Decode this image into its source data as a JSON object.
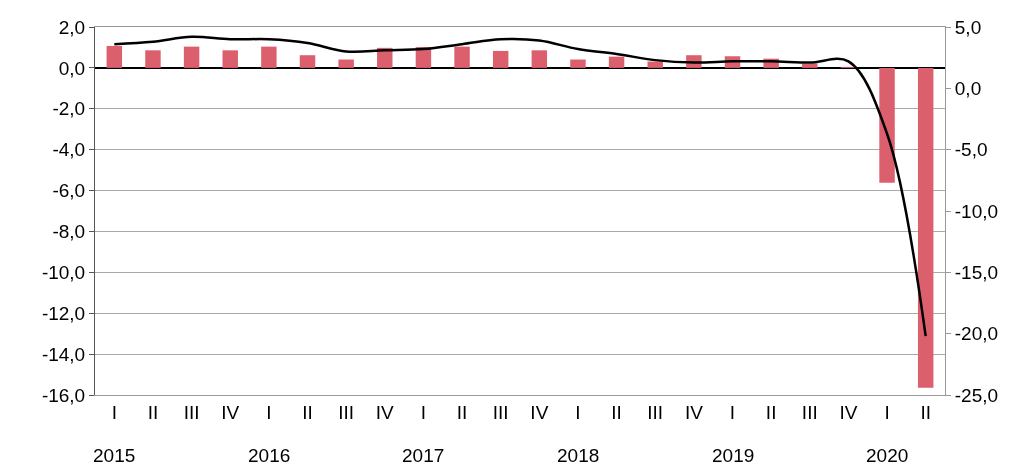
{
  "chart_data": {
    "type": "bar",
    "categories": [
      "I",
      "II",
      "III",
      "IV",
      "I",
      "II",
      "III",
      "IV",
      "I",
      "II",
      "III",
      "IV",
      "I",
      "II",
      "III",
      "IV",
      "I",
      "II",
      "III",
      "IV",
      "I",
      "II"
    ],
    "series": [
      {
        "color": "#dc5f6e",
        "values": [
          1.07,
          0.86,
          1.04,
          0.86,
          1.04,
          0.62,
          0.41,
          0.98,
          1.02,
          1.04,
          0.83,
          0.86,
          0.41,
          0.55,
          0.31,
          0.62,
          0.57,
          0.45,
          0.21,
          0.05,
          -5.62,
          -15.64
        ]
      },
      {
        "type": "line",
        "axis": "y2",
        "color": "#000000",
        "values": [
          3.6,
          3.8,
          4.2,
          4.0,
          4.0,
          3.7,
          3.0,
          3.1,
          3.2,
          3.6,
          4.0,
          3.9,
          3.2,
          2.8,
          2.3,
          2.1,
          2.2,
          2.2,
          2.1,
          2.2,
          -3.7,
          -20.2
        ]
      }
    ],
    "annotations": [
      "2015",
      "2016",
      "2017",
      "2018",
      "2019",
      "2020"
    ],
    "ylim": [
      -16,
      2
    ],
    "yticks": [
      {
        "value": 2,
        "label": "2,0"
      },
      {
        "value": 0,
        "label": "0,0"
      },
      {
        "value": -2,
        "label": "-2,0"
      },
      {
        "value": -4,
        "label": "-4,0"
      },
      {
        "value": -6,
        "label": "-6,0"
      },
      {
        "value": -8,
        "label": "-8,0"
      },
      {
        "value": -10,
        "label": "-10,0"
      },
      {
        "value": -12,
        "label": "-12,0"
      },
      {
        "value": -14,
        "label": "-14,0"
      },
      {
        "value": -16,
        "label": "-16,0"
      }
    ],
    "y2lim": [
      -25,
      5
    ],
    "y2ticks": [
      {
        "value": 5,
        "label": "5,0"
      },
      {
        "value": 0,
        "label": "0,0"
      },
      {
        "value": -5,
        "label": "-5,0"
      },
      {
        "value": -10,
        "label": "-10,0"
      },
      {
        "value": -15,
        "label": "-15,0"
      },
      {
        "value": -20,
        "label": "-20,0"
      },
      {
        "value": -25,
        "label": "-25,0"
      }
    ],
    "grid": "y",
    "legend": false,
    "marker": "none",
    "line_style": "solid"
  }
}
